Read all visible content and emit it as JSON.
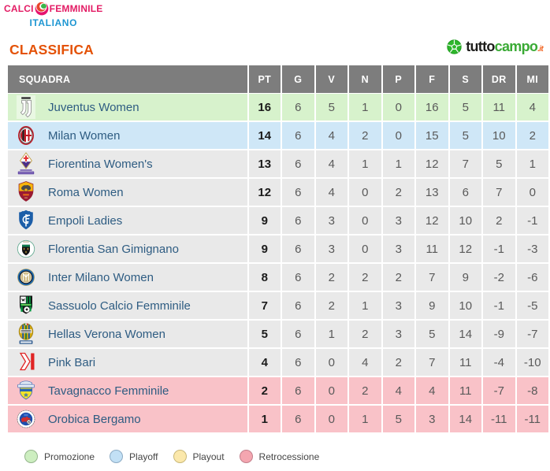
{
  "branding": {
    "line1_part1": "CALCI",
    "ball_icon": "tricolor-ball-icon",
    "line1_part2": "FEMMINILE",
    "line2": "ITALIANO"
  },
  "page_title": "CLASSIFICA",
  "tuttocampo": {
    "ball_icon": "soccer-ball-icon",
    "part1": "tutto",
    "part2": "campo",
    "part3": ".it"
  },
  "table": {
    "columns": [
      "SQUADRA",
      "PT",
      "G",
      "V",
      "N",
      "P",
      "F",
      "S",
      "DR",
      "MI"
    ],
    "rows": [
      {
        "team": "Juventus Women",
        "status": "promozione",
        "logo_icon": "juventus-crest-icon",
        "values": [
          "16",
          "6",
          "5",
          "1",
          "0",
          "16",
          "5",
          "11",
          "4"
        ]
      },
      {
        "team": "Milan Women",
        "status": "playoff",
        "logo_icon": "milan-crest-icon",
        "values": [
          "14",
          "6",
          "4",
          "2",
          "0",
          "15",
          "5",
          "10",
          "2"
        ]
      },
      {
        "team": "Fiorentina Women's",
        "status": "none",
        "logo_icon": "fiorentina-crest-icon",
        "values": [
          "13",
          "6",
          "4",
          "1",
          "1",
          "12",
          "7",
          "5",
          "1"
        ]
      },
      {
        "team": "Roma Women",
        "status": "none",
        "logo_icon": "roma-crest-icon",
        "values": [
          "12",
          "6",
          "4",
          "0",
          "2",
          "13",
          "6",
          "7",
          "0"
        ]
      },
      {
        "team": "Empoli Ladies",
        "status": "none",
        "logo_icon": "empoli-crest-icon",
        "values": [
          "9",
          "6",
          "3",
          "0",
          "3",
          "12",
          "10",
          "2",
          "-1"
        ]
      },
      {
        "team": "Florentia San Gimignano",
        "status": "none",
        "logo_icon": "florentia-crest-icon",
        "values": [
          "9",
          "6",
          "3",
          "0",
          "3",
          "11",
          "12",
          "-1",
          "-3"
        ]
      },
      {
        "team": "Inter Milano Women",
        "status": "none",
        "logo_icon": "inter-crest-icon",
        "values": [
          "8",
          "6",
          "2",
          "2",
          "2",
          "7",
          "9",
          "-2",
          "-6"
        ]
      },
      {
        "team": "Sassuolo Calcio Femminile",
        "status": "none",
        "logo_icon": "sassuolo-crest-icon",
        "values": [
          "7",
          "6",
          "2",
          "1",
          "3",
          "9",
          "10",
          "-1",
          "-5"
        ]
      },
      {
        "team": "Hellas Verona Women",
        "status": "none",
        "logo_icon": "verona-crest-icon",
        "values": [
          "5",
          "6",
          "1",
          "2",
          "3",
          "5",
          "14",
          "-9",
          "-7"
        ]
      },
      {
        "team": "Pink Bari",
        "status": "none",
        "logo_icon": "pinkbari-crest-icon",
        "values": [
          "4",
          "6",
          "0",
          "4",
          "2",
          "7",
          "11",
          "-4",
          "-10"
        ]
      },
      {
        "team": "Tavagnacco Femminile",
        "status": "retrocessione",
        "logo_icon": "tavagnacco-crest-icon",
        "values": [
          "2",
          "6",
          "0",
          "2",
          "4",
          "4",
          "11",
          "-7",
          "-8"
        ]
      },
      {
        "team": "Orobica Bergamo",
        "status": "retrocessione",
        "logo_icon": "orobica-crest-icon",
        "values": [
          "1",
          "6",
          "0",
          "1",
          "5",
          "3",
          "14",
          "-11",
          "-11"
        ]
      }
    ]
  },
  "legend": {
    "items": [
      {
        "label": "Promozione",
        "key": "promozione"
      },
      {
        "label": "Playoff",
        "key": "playoff"
      },
      {
        "label": "Playout",
        "key": "playout"
      },
      {
        "label": "Retrocessione",
        "key": "retrocessione"
      }
    ]
  },
  "colors": {
    "promozione_row": "#d7f2cc",
    "playoff_row": "#cfe7f7",
    "default_row": "#e9e9e9",
    "retrocessione_row": "#f9c2c8",
    "header_bg": "#7d7d7d",
    "accent_orange": "#e45207",
    "brand_pink": "#e31b64",
    "brand_blue": "#1e96d2",
    "tuttocampo_green": "#3aaa35"
  }
}
